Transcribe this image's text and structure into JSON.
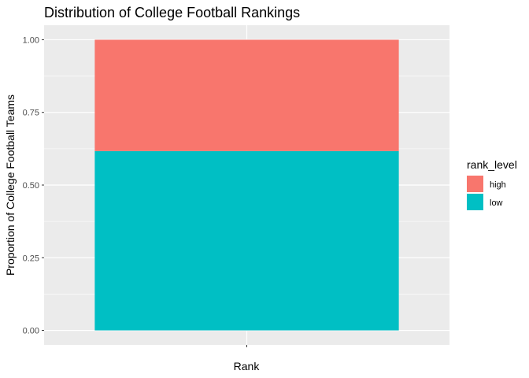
{
  "chart_data": {
    "type": "bar",
    "stacked": true,
    "title": "Distribution of College Football Rankings",
    "xlabel": "Rank",
    "ylabel": "Proportion of College Football Teams",
    "categories": [
      ""
    ],
    "series": [
      {
        "name": "high",
        "values": [
          0.383
        ],
        "color": "#F8766D"
      },
      {
        "name": "low",
        "values": [
          0.617
        ],
        "color": "#00BFC4"
      }
    ],
    "ylim": [
      -0.05,
      1.05
    ],
    "yticks": [
      "0.00",
      "0.25",
      "0.50",
      "0.75",
      "1.00"
    ],
    "grid": true,
    "legend": {
      "title": "rank_level",
      "position": "right"
    },
    "colors": {
      "panel": "#EBEBEB",
      "grid": "#FFFFFF"
    }
  }
}
